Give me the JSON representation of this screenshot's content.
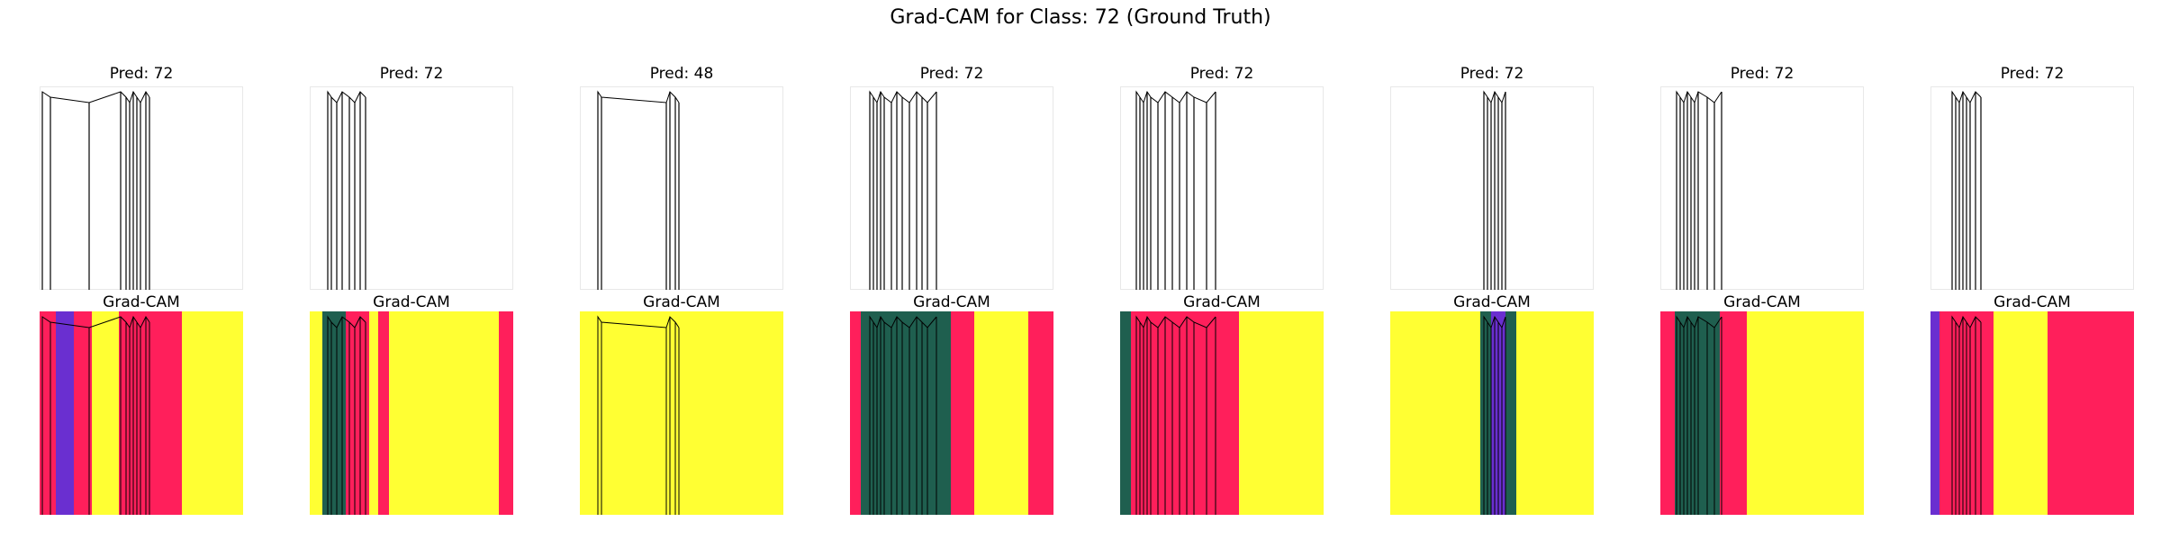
{
  "figure": {
    "title": "Grad-CAM for Class: 72 (Ground Truth)"
  },
  "colors": {
    "heat_high": "#ff1f5b",
    "heat_low": "#ffff33",
    "heat_mid_green": "#1f5f4f",
    "heat_mid_purple": "#6a2fd0",
    "heat_mid_cyan": "#38c4d8",
    "stroke": "#000000",
    "frame": "#e8e8e8"
  },
  "chart_data": {
    "type": "image-grid",
    "rows": [
      "input",
      "gradcam"
    ],
    "columns": [
      {
        "pred_label": "Pred: 72",
        "cam_label": "Grad-CAM",
        "predicted_class": 72
      },
      {
        "pred_label": "Pred: 72",
        "cam_label": "Grad-CAM",
        "predicted_class": 72
      },
      {
        "pred_label": "Pred: 48",
        "cam_label": "Grad-CAM",
        "predicted_class": 48
      },
      {
        "pred_label": "Pred: 72",
        "cam_label": "Grad-CAM",
        "predicted_class": 72
      },
      {
        "pred_label": "Pred: 72",
        "cam_label": "Grad-CAM",
        "predicted_class": 72
      },
      {
        "pred_label": "Pred: 72",
        "cam_label": "Grad-CAM",
        "predicted_class": 72
      },
      {
        "pred_label": "Pred: 72",
        "cam_label": "Grad-CAM",
        "predicted_class": 72
      },
      {
        "pred_label": "Pred: 72",
        "cam_label": "Grad-CAM",
        "predicted_class": 72
      }
    ],
    "ground_truth_class": 72
  }
}
